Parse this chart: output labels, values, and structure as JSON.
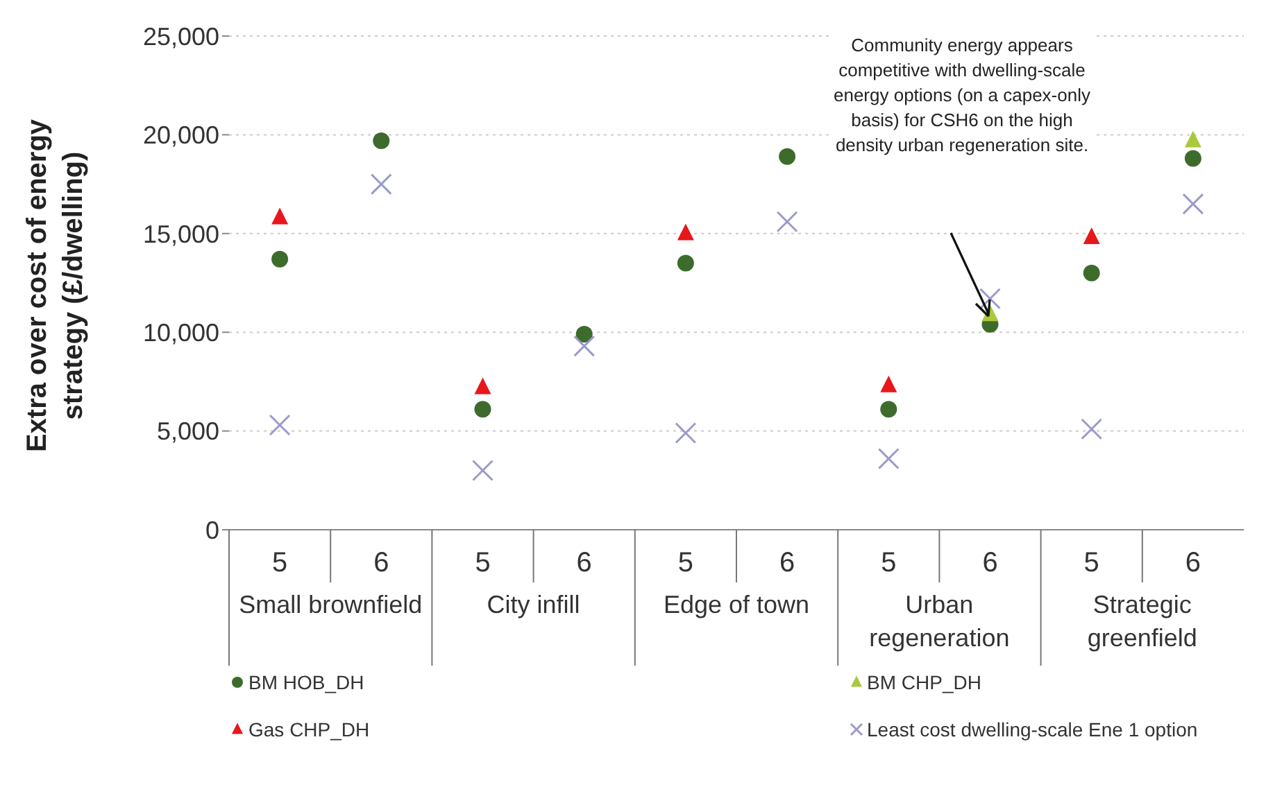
{
  "chart_data": {
    "type": "scatter",
    "ylabel": "Extra over cost of energy strategy (£/dwelling)",
    "categories": [
      "5",
      "6",
      "5",
      "6",
      "5",
      "6",
      "5",
      "6",
      "5",
      "6"
    ],
    "series": [
      {
        "name": "BM HOB_DH",
        "color": "#3d6b2c",
        "marker": "circle",
        "values": [
          13700,
          19700,
          6100,
          9900,
          13500,
          18900,
          6100,
          10400,
          13000,
          18800
        ]
      },
      {
        "name": "BM CHP_DH",
        "color": "#a9c83c",
        "marker": "triangle",
        "values": [
          null,
          null,
          null,
          null,
          null,
          null,
          null,
          10900,
          null,
          19700
        ]
      },
      {
        "name": "Gas CHP_DH",
        "color": "#e8171b",
        "marker": "triangle",
        "values": [
          15800,
          null,
          7200,
          null,
          15000,
          null,
          7300,
          null,
          14800,
          null
        ]
      },
      {
        "name": "Least cost dwelling-scale Ene 1 option",
        "color": "#9a9acb",
        "marker": "cross",
        "values": [
          5300,
          17500,
          3000,
          9300,
          4900,
          15600,
          3600,
          11700,
          5100,
          16500
        ]
      }
    ],
    "annotations": [
      "Community  energy appears competitive with dwelling-scale energy options (on a capex-only basis) for CSH6 on the high density urban regeneration site.",
      "Small brownfield",
      "City infill",
      "Edge of town",
      "Urban regeneration",
      "Strategic greenfield"
    ],
    "ylim": [
      0,
      25000
    ],
    "yticks": [
      {
        "value": 0,
        "label": "0"
      },
      {
        "value": 5000,
        "label": "5,000"
      },
      {
        "value": 10000,
        "label": "10,000"
      },
      {
        "value": 15000,
        "label": "15,000"
      },
      {
        "value": 20000,
        "label": "20,000"
      },
      {
        "value": 25000,
        "label": "25,000"
      }
    ],
    "grid": "y",
    "legend": "bottom"
  }
}
